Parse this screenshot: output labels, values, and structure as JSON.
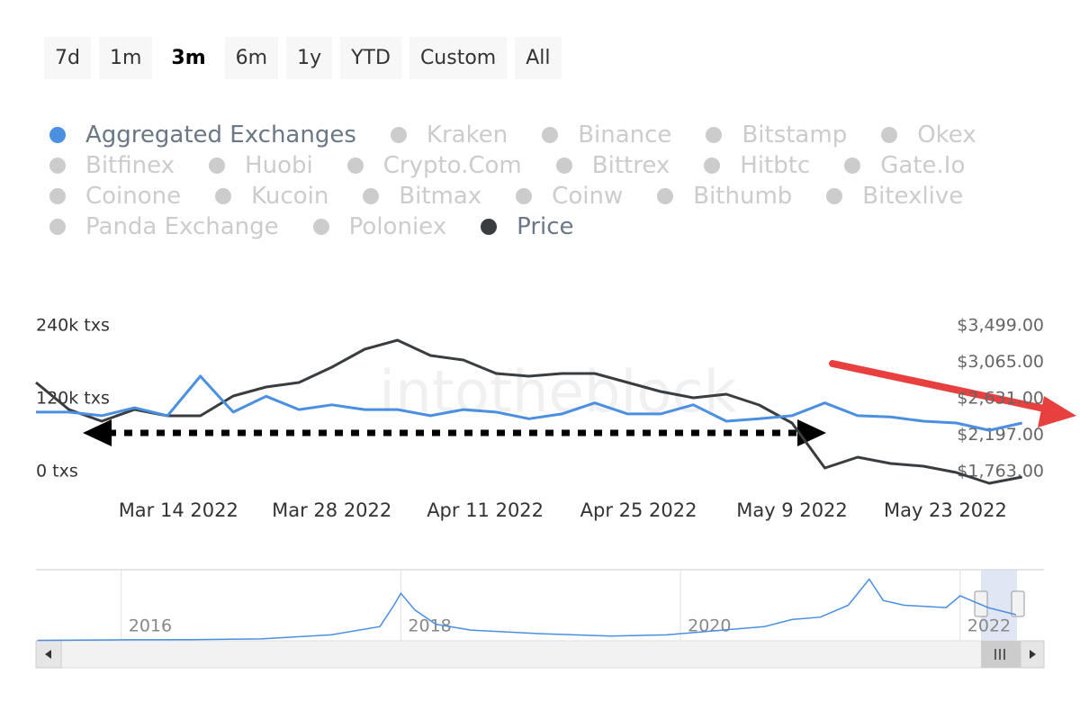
{
  "chart_data": {
    "type": "line",
    "range_buttons": [
      "7d",
      "1m",
      "3m",
      "6m",
      "1y",
      "YTD",
      "Custom",
      "All"
    ],
    "selected_button": 2,
    "watermark": "intotheblock",
    "x": [
      "Mar 1 2022",
      "Mar 4 2022",
      "Mar 7 2022",
      "Mar 10 2022",
      "Mar 13 2022",
      "Mar 16 2022",
      "Mar 19 2022",
      "Mar 22 2022",
      "Mar 25 2022",
      "Mar 28 2022",
      "Mar 31 2022",
      "Apr 3 2022",
      "Apr 6 2022",
      "Apr 9 2022",
      "Apr 12 2022",
      "Apr 15 2022",
      "Apr 18 2022",
      "Apr 21 2022",
      "Apr 24 2022",
      "Apr 27 2022",
      "Apr 30 2022",
      "May 3 2022",
      "May 6 2022",
      "May 9 2022",
      "May 12 2022",
      "May 15 2022",
      "May 18 2022",
      "May 21 2022",
      "May 24 2022",
      "May 27 2022",
      "May 30 2022"
    ],
    "xlim": [
      "Mar 1 2022",
      "Jun 1 2022"
    ],
    "xticks": [
      "Mar 14 2022",
      "Mar 28 2022",
      "Apr 11 2022",
      "Apr 25 2022",
      "May 9 2022",
      "May 23 2022"
    ],
    "series": [
      {
        "name": "Aggregated Exchanges",
        "color": "#4a8fe0",
        "values": [
          98000,
          98000,
          92000,
          105000,
          92000,
          157000,
          98000,
          124000,
          102000,
          110000,
          102000,
          102000,
          92000,
          102000,
          98000,
          87000,
          95000,
          113000,
          95000,
          95000,
          110000,
          83000,
          87000,
          92000,
          113000,
          92000,
          90000,
          83000,
          80000,
          68000,
          80000
        ]
      },
      {
        "name": "Price",
        "color": "#3a3d40",
        "axis": "y2",
        "values": [
          2824,
          2502,
          2363,
          2502,
          2427,
          2427,
          2663,
          2770,
          2824,
          3006,
          3220,
          3328,
          3145,
          3092,
          2931,
          2899,
          2931,
          2931,
          2824,
          2717,
          2642,
          2685,
          2556,
          2342,
          1806,
          1934,
          1859,
          1827,
          1752,
          1624,
          1699
        ]
      }
    ],
    "inactive_series": [
      "Kraken",
      "Binance",
      "Bitstamp",
      "Okex",
      "Bitfinex",
      "Huobi",
      "Crypto.Com",
      "Bittrex",
      "Hitbtc",
      "Gate.Io",
      "Coinone",
      "Kucoin",
      "Bitmax",
      "Coinw",
      "Bithumb",
      "Bitexlive",
      "Panda Exchange",
      "Poloniex"
    ],
    "inactive_color": "#cccccc",
    "ylim": [
      0,
      240000
    ],
    "yticks": [
      {
        "value": 0,
        "label": "0 txs"
      },
      {
        "value": 120000,
        "label": "120k txs"
      },
      {
        "value": 240000,
        "label": "240k txs"
      }
    ],
    "y2lim": [
      1763,
      3499
    ],
    "y2ticks": [
      {
        "value": 1763,
        "label": "$1,763.00"
      },
      {
        "value": 2197,
        "label": "$2,197.00"
      },
      {
        "value": 2631,
        "label": "$2,631.00"
      },
      {
        "value": 3065,
        "label": "$3,065.00"
      },
      {
        "value": 3499,
        "label": "$3,499.00"
      }
    ],
    "navigator": {
      "x": [
        2015.4,
        2016,
        2016.5,
        2017,
        2017.5,
        2017.85,
        2017.95,
        2018.0,
        2018.1,
        2018.25,
        2018.5,
        2019,
        2019.5,
        2019.9,
        2020.3,
        2020.6,
        2020.8,
        2021,
        2021.2,
        2021.35,
        2021.45,
        2021.6,
        2021.9,
        2022.0,
        2022.2,
        2022.4
      ],
      "values": [
        2000,
        4000,
        5000,
        8000,
        25000,
        60000,
        150000,
        200000,
        130000,
        70000,
        45000,
        30000,
        20000,
        25000,
        45000,
        60000,
        90000,
        100000,
        150000,
        260000,
        170000,
        150000,
        140000,
        190000,
        140000,
        110000
      ],
      "xlim": [
        2015.39,
        2022.6
      ],
      "ylim": [
        0,
        300000
      ],
      "xticks": [
        2016,
        2018,
        2020,
        2022
      ],
      "color": "#4a8fe0"
    }
  }
}
